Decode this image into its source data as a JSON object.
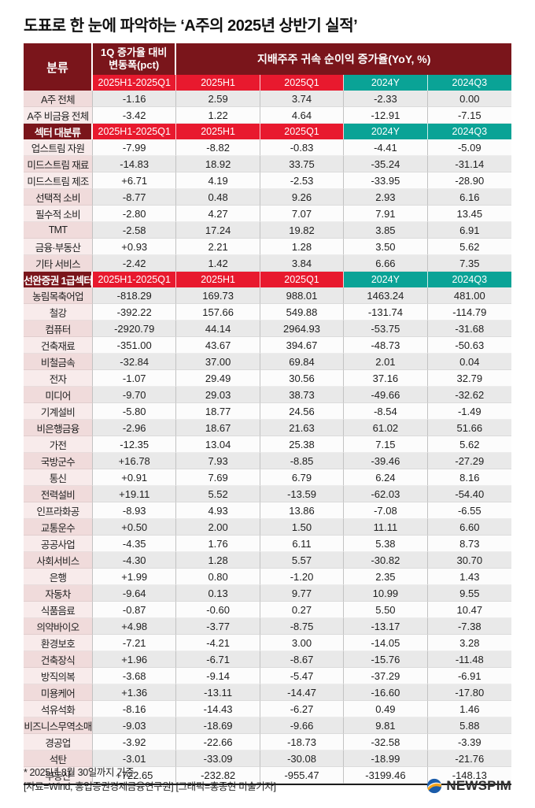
{
  "title": "도표로 한 눈에 파악하는 ‘A주의 2025년 상반기 실적’",
  "chart_data": {
    "type": "table",
    "title": "도표로 한 눈에 파악하는 ‘A주의 2025년 상반기 실적’",
    "header_groups": {
      "category": "분류",
      "group1": "1Q 증가율 대비\n변동폭(pct)",
      "group2": "지배주주 귀속 순이익 증가율(YoY, %)"
    },
    "sub_headers": [
      "2025H1-2025Q1",
      "2025H1",
      "2025Q1",
      "2024Y",
      "2024Q3"
    ],
    "sections": [
      {
        "header": null,
        "rows": [
          {
            "label": "A주 전체",
            "values": [
              "-1.16",
              "2.59",
              "3.74",
              "-2.33",
              "0.00"
            ]
          },
          {
            "label": "A주 비금융 전체",
            "values": [
              "-3.42",
              "1.22",
              "4.64",
              "-12.91",
              "-7.15"
            ]
          }
        ]
      },
      {
        "header": "섹터 대분류",
        "rows": [
          {
            "label": "업스트림 자원",
            "values": [
              "-7.99",
              "-8.82",
              "-0.83",
              "-4.41",
              "-5.09"
            ]
          },
          {
            "label": "미드스트림 재료",
            "values": [
              "-14.83",
              "18.92",
              "33.75",
              "-35.24",
              "-31.14"
            ]
          },
          {
            "label": "미드스트림 제조",
            "values": [
              "+6.71",
              "4.19",
              "-2.53",
              "-33.95",
              "-28.90"
            ]
          },
          {
            "label": "선택적 소비",
            "values": [
              "-8.77",
              "0.48",
              "9.26",
              "2.93",
              "6.16"
            ]
          },
          {
            "label": "필수적 소비",
            "values": [
              "-2.80",
              "4.27",
              "7.07",
              "7.91",
              "13.45"
            ]
          },
          {
            "label": "TMT",
            "values": [
              "-2.58",
              "17.24",
              "19.82",
              "3.85",
              "6.91"
            ]
          },
          {
            "label": "금융·부동산",
            "values": [
              "+0.93",
              "2.21",
              "1.28",
              "3.50",
              "5.62"
            ]
          },
          {
            "label": "기타 서비스",
            "values": [
              "-2.42",
              "1.42",
              "3.84",
              "6.66",
              "7.35"
            ]
          }
        ]
      },
      {
        "header": "선완증권 1급섹터",
        "rows": [
          {
            "label": "농림목축어업",
            "values": [
              "-818.29",
              "169.73",
              "988.01",
              "1463.24",
              "481.00"
            ]
          },
          {
            "label": "철강",
            "values": [
              "-392.22",
              "157.66",
              "549.88",
              "-131.74",
              "-114.79"
            ]
          },
          {
            "label": "컴퓨터",
            "values": [
              "-2920.79",
              "44.14",
              "2964.93",
              "-53.75",
              "-31.68"
            ]
          },
          {
            "label": "건축재료",
            "values": [
              "-351.00",
              "43.67",
              "394.67",
              "-48.73",
              "-50.63"
            ]
          },
          {
            "label": "비철금속",
            "values": [
              "-32.84",
              "37.00",
              "69.84",
              "2.01",
              "0.04"
            ]
          },
          {
            "label": "전자",
            "values": [
              "-1.07",
              "29.49",
              "30.56",
              "37.16",
              "32.79"
            ]
          },
          {
            "label": "미디어",
            "values": [
              "-9.70",
              "29.03",
              "38.73",
              "-49.66",
              "-32.62"
            ]
          },
          {
            "label": "기계설비",
            "values": [
              "-5.80",
              "18.77",
              "24.56",
              "-8.54",
              "-1.49"
            ]
          },
          {
            "label": "비은행금융",
            "values": [
              "-2.96",
              "18.67",
              "21.63",
              "61.02",
              "51.66"
            ]
          },
          {
            "label": "가전",
            "values": [
              "-12.35",
              "13.04",
              "25.38",
              "7.15",
              "5.62"
            ]
          },
          {
            "label": "국방군수",
            "values": [
              "+16.78",
              "7.93",
              "-8.85",
              "-39.46",
              "-27.29"
            ]
          },
          {
            "label": "통신",
            "values": [
              "+0.91",
              "7.69",
              "6.79",
              "6.24",
              "8.16"
            ]
          },
          {
            "label": "전력설비",
            "values": [
              "+19.11",
              "5.52",
              "-13.59",
              "-62.03",
              "-54.40"
            ]
          },
          {
            "label": "인프라화공",
            "values": [
              "-8.93",
              "4.93",
              "13.86",
              "-7.08",
              "-6.55"
            ]
          },
          {
            "label": "교통운수",
            "values": [
              "+0.50",
              "2.00",
              "1.50",
              "11.11",
              "6.60"
            ]
          },
          {
            "label": "공공사업",
            "values": [
              "-4.35",
              "1.76",
              "6.11",
              "5.38",
              "8.73"
            ]
          },
          {
            "label": "사회서비스",
            "values": [
              "-4.30",
              "1.28",
              "5.57",
              "-30.82",
              "30.70"
            ]
          },
          {
            "label": "은행",
            "values": [
              "+1.99",
              "0.80",
              "-1.20",
              "2.35",
              "1.43"
            ]
          },
          {
            "label": "자동차",
            "values": [
              "-9.64",
              "0.13",
              "9.77",
              "10.99",
              "9.55"
            ]
          },
          {
            "label": "식품음료",
            "values": [
              "-0.87",
              "-0.60",
              "0.27",
              "5.50",
              "10.47"
            ]
          },
          {
            "label": "의약바이오",
            "values": [
              "+4.98",
              "-3.77",
              "-8.75",
              "-13.17",
              "-7.38"
            ]
          },
          {
            "label": "환경보호",
            "values": [
              "-7.21",
              "-4.21",
              "3.00",
              "-14.05",
              "3.28"
            ]
          },
          {
            "label": "건축장식",
            "values": [
              "+1.96",
              "-6.71",
              "-8.67",
              "-15.76",
              "-11.48"
            ]
          },
          {
            "label": "방직의복",
            "values": [
              "-3.68",
              "-9.14",
              "-5.47",
              "-37.29",
              "-6.91"
            ]
          },
          {
            "label": "미용케어",
            "values": [
              "+1.36",
              "-13.11",
              "-14.47",
              "-16.60",
              "-17.80"
            ]
          },
          {
            "label": "석유석화",
            "values": [
              "-8.16",
              "-14.43",
              "-6.27",
              "0.49",
              "1.46"
            ]
          },
          {
            "label": "비즈니스무역소매",
            "values": [
              "-9.03",
              "-18.69",
              "-9.66",
              "9.81",
              "5.88"
            ]
          },
          {
            "label": "경공업",
            "values": [
              "-3.92",
              "-22.66",
              "-18.73",
              "-32.58",
              "-3.39"
            ]
          },
          {
            "label": "석탄",
            "values": [
              "-3.01",
              "-33.09",
              "-30.08",
              "-18.99",
              "-21.76"
            ]
          },
          {
            "label": "부동산",
            "values": [
              "+722.65",
              "-232.82",
              "-955.47",
              "-3199.46",
              "-148.13"
            ]
          }
        ]
      }
    ]
  },
  "footnote": {
    "line1": "* 2025년 8월 30일까지 기준",
    "line2": "[자료=Wind, 흥업증권경제금융연구원] [그래픽=홍종현 미술기자]"
  },
  "logo": {
    "text": "NEWSPIM"
  },
  "colors": {
    "header_maroon": "#7a151b",
    "subheader_red": "#e8192e",
    "subheader_teal": "#0aa396",
    "stripe_gray": "#e9e9e9",
    "stripe_white": "#fcfcfc",
    "label_pink_dark": "#f0dbdb",
    "label_pink_light": "#f8ebeb"
  }
}
